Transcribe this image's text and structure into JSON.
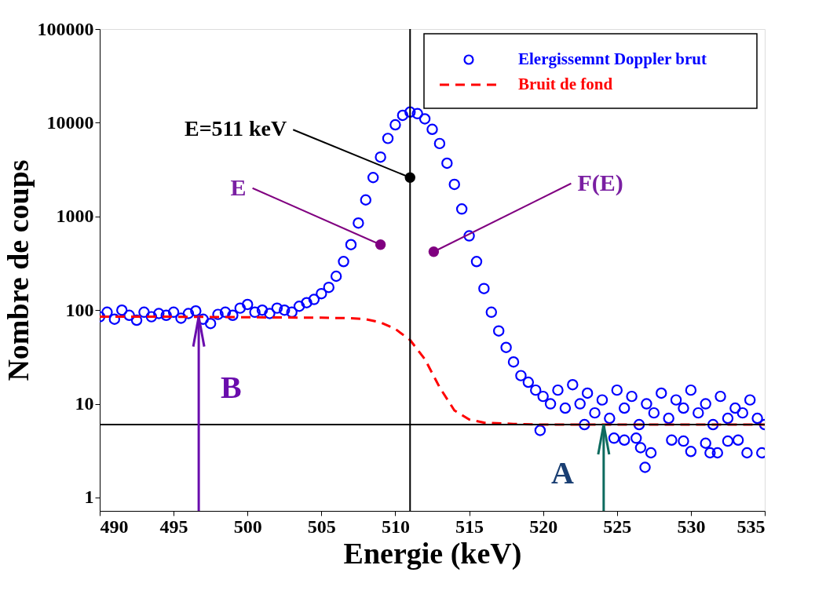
{
  "chart_data": {
    "type": "scatter",
    "xlabel": "Energie (keV)",
    "ylabel": "Nombre de coups",
    "xlim": [
      490,
      535
    ],
    "xticks": [
      490,
      495,
      500,
      505,
      510,
      515,
      520,
      525,
      530,
      535
    ],
    "ylim": [
      0.72,
      100000
    ],
    "yticks": [
      1,
      10,
      100,
      1000,
      10000,
      100000
    ],
    "log": true,
    "grid": false,
    "legend": "top right",
    "series": [
      {
        "name": "Elergissemnt Doppler brut",
        "color": "#0000ff",
        "marker": "circle",
        "x": [
          490,
          490.5,
          491,
          491.5,
          492,
          492.5,
          493,
          493.5,
          494,
          494.5,
          495,
          495.5,
          496,
          496.5,
          497,
          497.5,
          498,
          498.5,
          499,
          499.5,
          500,
          500.5,
          501,
          501.5,
          502,
          502.5,
          503,
          503.5,
          504,
          504.5,
          505,
          505.5,
          506,
          506.5,
          507,
          507.5,
          508,
          508.5,
          509,
          509.5,
          510,
          510.5,
          511,
          511.5,
          512,
          512.5,
          513,
          513.5,
          514,
          514.5,
          515,
          515.5,
          516,
          516.5,
          517,
          517.5,
          518,
          518.5,
          519,
          519.5,
          520,
          520.5,
          521,
          521.5,
          522,
          522.5,
          523,
          523.5,
          524,
          524.5,
          525,
          525.5,
          526,
          526.5,
          527,
          527.5,
          528,
          528.5,
          529,
          529.5,
          530,
          530.5,
          531,
          531.5,
          532,
          532.5,
          533,
          533.5,
          534,
          534.5,
          535,
          519.8,
          522.8,
          524.8,
          525.5,
          526.3,
          526.6,
          526.9,
          527.3,
          528.7,
          529.5,
          530,
          531,
          531.3,
          531.8,
          532.5,
          533.2,
          533.8,
          534.8
        ],
        "values": [
          85,
          95,
          80,
          100,
          88,
          78,
          95,
          85,
          92,
          88,
          95,
          82,
          92,
          98,
          80,
          72,
          90,
          95,
          88,
          105,
          115,
          95,
          100,
          92,
          105,
          100,
          95,
          110,
          120,
          130,
          150,
          175,
          230,
          330,
          500,
          850,
          1500,
          2600,
          4300,
          6800,
          9500,
          12000,
          13000,
          12500,
          11000,
          8500,
          6000,
          3700,
          2200,
          1200,
          620,
          330,
          170,
          95,
          60,
          40,
          28,
          20,
          17,
          14,
          12,
          10,
          14,
          9,
          16,
          10,
          13,
          8,
          11,
          7,
          14,
          9,
          12,
          6,
          10,
          8,
          13,
          7,
          11,
          9,
          14,
          8,
          10,
          6,
          12,
          7,
          9,
          8,
          11,
          7,
          6,
          5.2,
          6,
          4.3,
          4.1,
          4.3,
          3.4,
          2.1,
          3,
          4.1,
          4,
          3.1,
          3.8,
          3,
          3,
          4,
          4.1,
          3,
          3
        ]
      },
      {
        "name": "Bruit de fond",
        "color": "#ff0000",
        "type": "line",
        "line_style": "dashed",
        "marker": "none",
        "x": [
          490,
          495,
          500,
          505,
          507,
          508,
          509,
          510,
          511,
          512,
          513,
          514,
          515,
          516,
          518,
          520,
          525,
          530,
          535
        ],
        "values": [
          85,
          85,
          84,
          83,
          82,
          80,
          74,
          63,
          48,
          30,
          15,
          8.5,
          6.8,
          6.3,
          6.1,
          6,
          6,
          6,
          6
        ]
      }
    ],
    "ref_lines": [
      {
        "axis": "x",
        "value": 511,
        "color": "#000000"
      },
      {
        "axis": "y",
        "value": 6,
        "color": "#000000"
      }
    ],
    "annotations": [
      {
        "text": "E=511 keV",
        "x": 511,
        "y": 2600
      },
      {
        "text": "E",
        "x": 509,
        "y": 500
      },
      {
        "text": "F(E)",
        "x": 512.6,
        "y": 420
      },
      {
        "text": "B",
        "x": 496.7,
        "y": 85
      },
      {
        "text": "A",
        "x": 524.1,
        "y": 6
      }
    ]
  }
}
